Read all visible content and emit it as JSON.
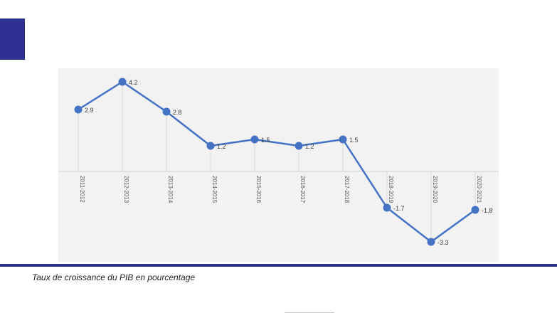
{
  "caption": "Taux de croissance du PIB en pourcentage",
  "colors": {
    "accent": "#2e3192",
    "line": "#4472c4",
    "plot_background": "#f2f2f2"
  },
  "chart_data": {
    "type": "line",
    "categories": [
      "2011-2012",
      "2012-2013",
      "2013-2014",
      "2014-2015",
      "2015-2016",
      "2016-2017",
      "2017-2018",
      "2018-2019",
      "2019-2020",
      "2020-2021"
    ],
    "series": [
      {
        "values": [
          2.9,
          4.2,
          2.8,
          1.2,
          1.5,
          1.2,
          1.5,
          -1.7,
          -3.3,
          -1.8
        ]
      }
    ],
    "data_labels": [
      "2.9",
      "4.2",
      "2.8",
      "1.2",
      "1.5",
      "1.2",
      "1.5",
      "-1.7",
      "-3.3",
      "-1.8"
    ],
    "title": "",
    "xlabel": "",
    "ylabel": "",
    "ylim": [
      -3.5,
      4.5
    ],
    "grid": "vertical-drop-lines",
    "legend": "none",
    "marker": "circle"
  }
}
